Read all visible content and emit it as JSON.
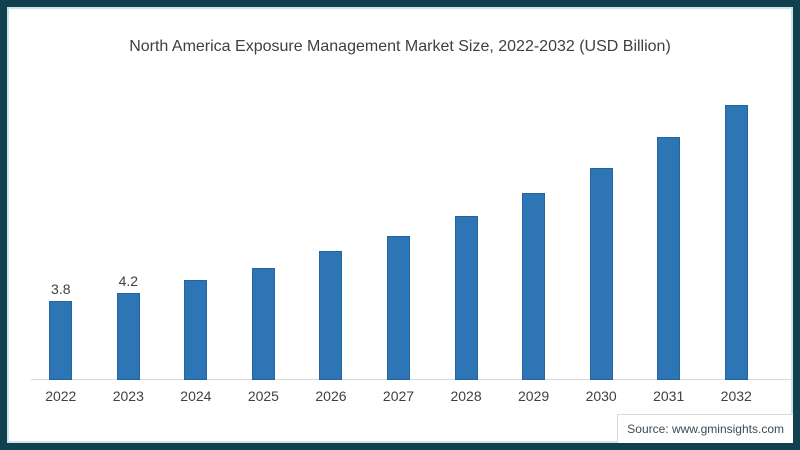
{
  "frame": {
    "border_color": "#11404F",
    "inner_line_color": "#CFE3EC",
    "background_color": "#FFFFFF"
  },
  "footer": {
    "source_text": "Source: www.gminsights.com"
  },
  "chart_data": {
    "type": "bar",
    "title": "North America Exposure Management Market Size, 2022-2032 (USD Billion)",
    "unit": "USD Billion",
    "categories": [
      "2022",
      "2023",
      "2024",
      "2025",
      "2026",
      "2027",
      "2028",
      "2029",
      "2030",
      "2031",
      "2032"
    ],
    "values": [
      3.8,
      4.2,
      4.8,
      5.4,
      6.2,
      6.9,
      7.9,
      9.0,
      10.2,
      11.7,
      13.2
    ],
    "data_labels": [
      "3.8",
      "4.2",
      "",
      "",
      "",
      "",
      "",
      "",
      "",
      "",
      ""
    ],
    "xlabel": "",
    "ylabel": "",
    "ylim": [
      0,
      14
    ],
    "bar_color": "#2E75B6",
    "bar_border_color": "#2365A0",
    "axis_line_color": "#D9D9D9",
    "label_color": "#404040",
    "gridlines": false,
    "legend": false,
    "y_axis_visible": false
  }
}
